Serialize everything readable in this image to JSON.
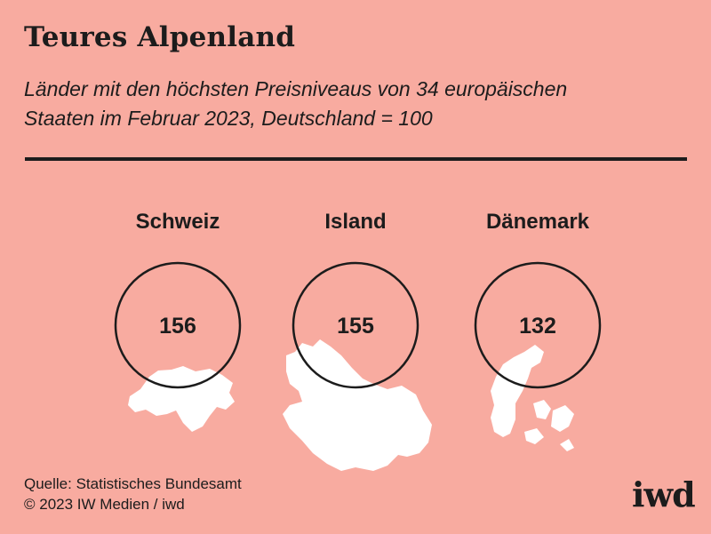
{
  "title": "Teures Alpenland",
  "subtitle_line1": "Länder mit den höchsten Preisniveaus von 34 europäischen",
  "subtitle_line2": "Staaten im Februar 2023, Deutschland = 100",
  "chart_data": {
    "type": "bubble",
    "title": "Teures Alpenland",
    "subtitle": "Länder mit den höchsten Preisniveaus von 34 europäischen Staaten im Februar 2023, Deutschland = 100",
    "categories": [
      "Schweiz",
      "Island",
      "Dänemark"
    ],
    "values": [
      156,
      155,
      132
    ],
    "baseline_label": "Deutschland = 100"
  },
  "source_line1": "Quelle: Statistisches Bundesamt",
  "source_line2": "© 2023 IW Medien / iwd",
  "logo": "iwd",
  "colors": {
    "background": "#f8aba0",
    "ink": "#1c1c1c",
    "map": "#ffffff"
  }
}
